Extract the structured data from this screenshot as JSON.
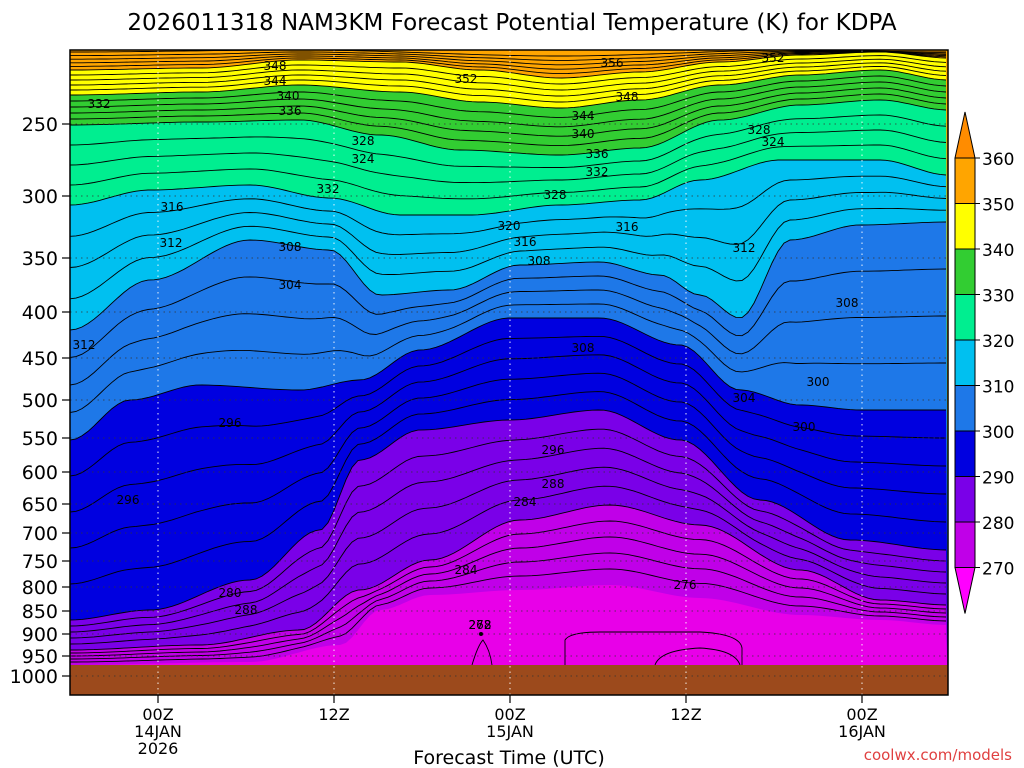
{
  "chart_data": {
    "type": "heatmap",
    "title": "2026011318 NAM3KM Forecast Potential Temperature (K) for KDPA",
    "xlabel": "Forecast Time (UTC)",
    "ylabel": "",
    "y_ticks": [
      "250",
      "300",
      "350",
      "400",
      "450",
      "500",
      "550",
      "600",
      "650",
      "700",
      "750",
      "800",
      "850",
      "900",
      "950",
      "1000"
    ],
    "x_ticks": [
      {
        "line1": "00Z",
        "line2": "14JAN",
        "line3": "2026"
      },
      {
        "line1": "12Z",
        "line2": "",
        "line3": ""
      },
      {
        "line1": "00Z",
        "line2": "15JAN",
        "line3": ""
      },
      {
        "line1": "12Z",
        "line2": "",
        "line3": ""
      },
      {
        "line1": "00Z",
        "line2": "16JAN",
        "line3": ""
      }
    ],
    "colorbar_ticks": [
      "360",
      "350",
      "340",
      "330",
      "320",
      "310",
      "300",
      "290",
      "280",
      "270"
    ],
    "contour_labels": [
      "348",
      "344",
      "340",
      "336",
      "332",
      "352",
      "356",
      "348",
      "352",
      "344",
      "340",
      "336",
      "332",
      "328",
      "324",
      "328",
      "324",
      "332",
      "328",
      "316",
      "320",
      "316",
      "316",
      "312",
      "312",
      "308",
      "308",
      "304",
      "312",
      "308",
      "308",
      "296",
      "300",
      "304",
      "300",
      "296",
      "296",
      "288",
      "284",
      "280",
      "288",
      "284",
      "276",
      "272",
      "268"
    ],
    "watermark": "coolwx.com/models"
  }
}
